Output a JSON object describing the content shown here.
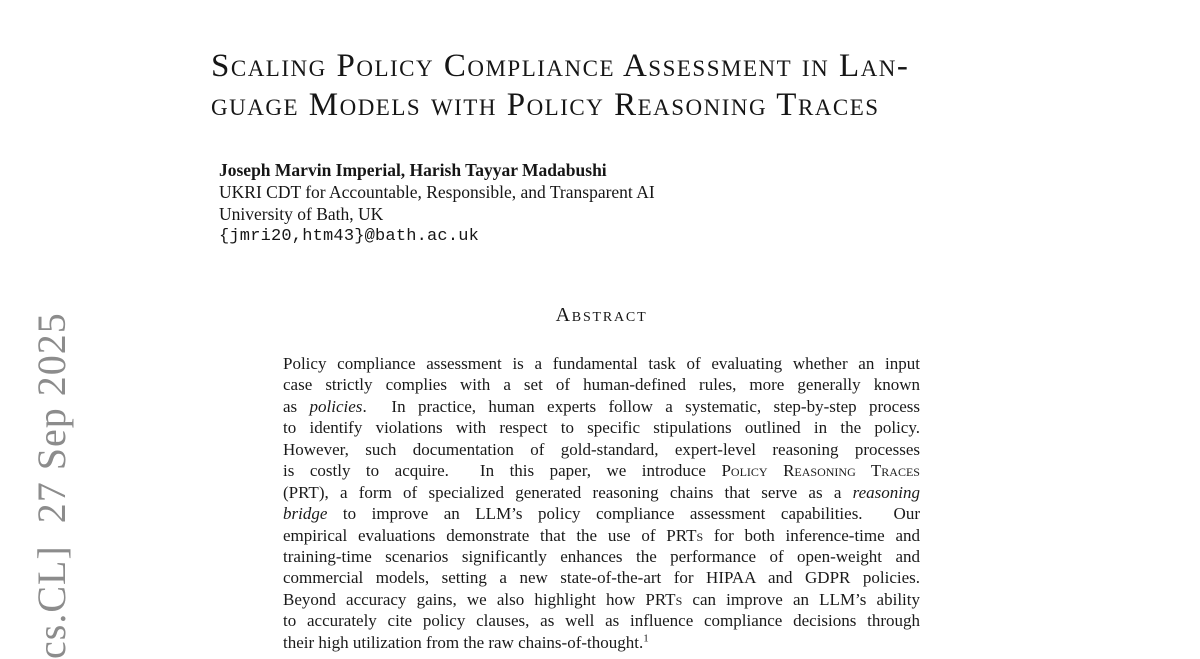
{
  "stamp": {
    "text": "cs.CL]  27 Sep 2025",
    "color": "#8c8c8c"
  },
  "title": {
    "line1": "Scaling Policy Compliance Assessment in Lan-",
    "line2": "guage Models with Policy Reasoning Traces"
  },
  "authors": {
    "names": "Joseph Marvin Imperial, Harish Tayyar Madabushi",
    "affiliation1": "UKRI CDT for Accountable, Responsible, and Transparent AI",
    "affiliation2": "University of Bath, UK",
    "email": "{jmri20,htm43}@bath.ac.uk"
  },
  "abstract": {
    "heading": "Abstract",
    "lines": [
      [
        [
          "",
          "Policy compliance assessment is a fundamental task of evaluating whether an input"
        ]
      ],
      [
        [
          "",
          "case strictly complies with a set of human-defined rules, more generally known"
        ]
      ],
      [
        [
          "",
          "as "
        ],
        [
          "i",
          "policies"
        ],
        [
          "",
          ".  In practice, human experts follow a systematic, step-by-step process"
        ]
      ],
      [
        [
          "",
          "to identify violations with respect to specific stipulations outlined in the policy."
        ]
      ],
      [
        [
          "",
          "However, such documentation of gold-standard, expert-level reasoning processes"
        ]
      ],
      [
        [
          "",
          "is costly to acquire.  In this paper, we introduce "
        ],
        [
          "sc",
          "Policy Reasoning Traces"
        ]
      ],
      [
        [
          "",
          "(PRT), a form of specialized generated reasoning chains that serve as a "
        ],
        [
          "i",
          "reasoning"
        ]
      ],
      [
        [
          "i",
          "bridge"
        ],
        [
          "",
          " to improve an LLM’s policy compliance assessment capabilities.  Our"
        ]
      ],
      [
        [
          "",
          "empirical evaluations demonstrate that the use of "
        ],
        [
          "sc",
          "PRTs"
        ],
        [
          "",
          " for both inference-time and"
        ]
      ],
      [
        [
          "",
          "training-time scenarios significantly enhances the performance of open-weight and"
        ]
      ],
      [
        [
          "",
          "commercial models, setting a new state-of-the-art for HIPAA and GDPR policies."
        ]
      ],
      [
        [
          "",
          "Beyond accuracy gains, we also highlight how "
        ],
        [
          "sc",
          "PRTs"
        ],
        [
          "",
          " can improve an LLM’s ability"
        ]
      ],
      [
        [
          "",
          "to accurately cite policy clauses, as well as influence compliance decisions through"
        ]
      ],
      [
        [
          "",
          "their high utilization from the raw chains-of-thought."
        ],
        [
          "sup",
          "1"
        ]
      ]
    ]
  }
}
